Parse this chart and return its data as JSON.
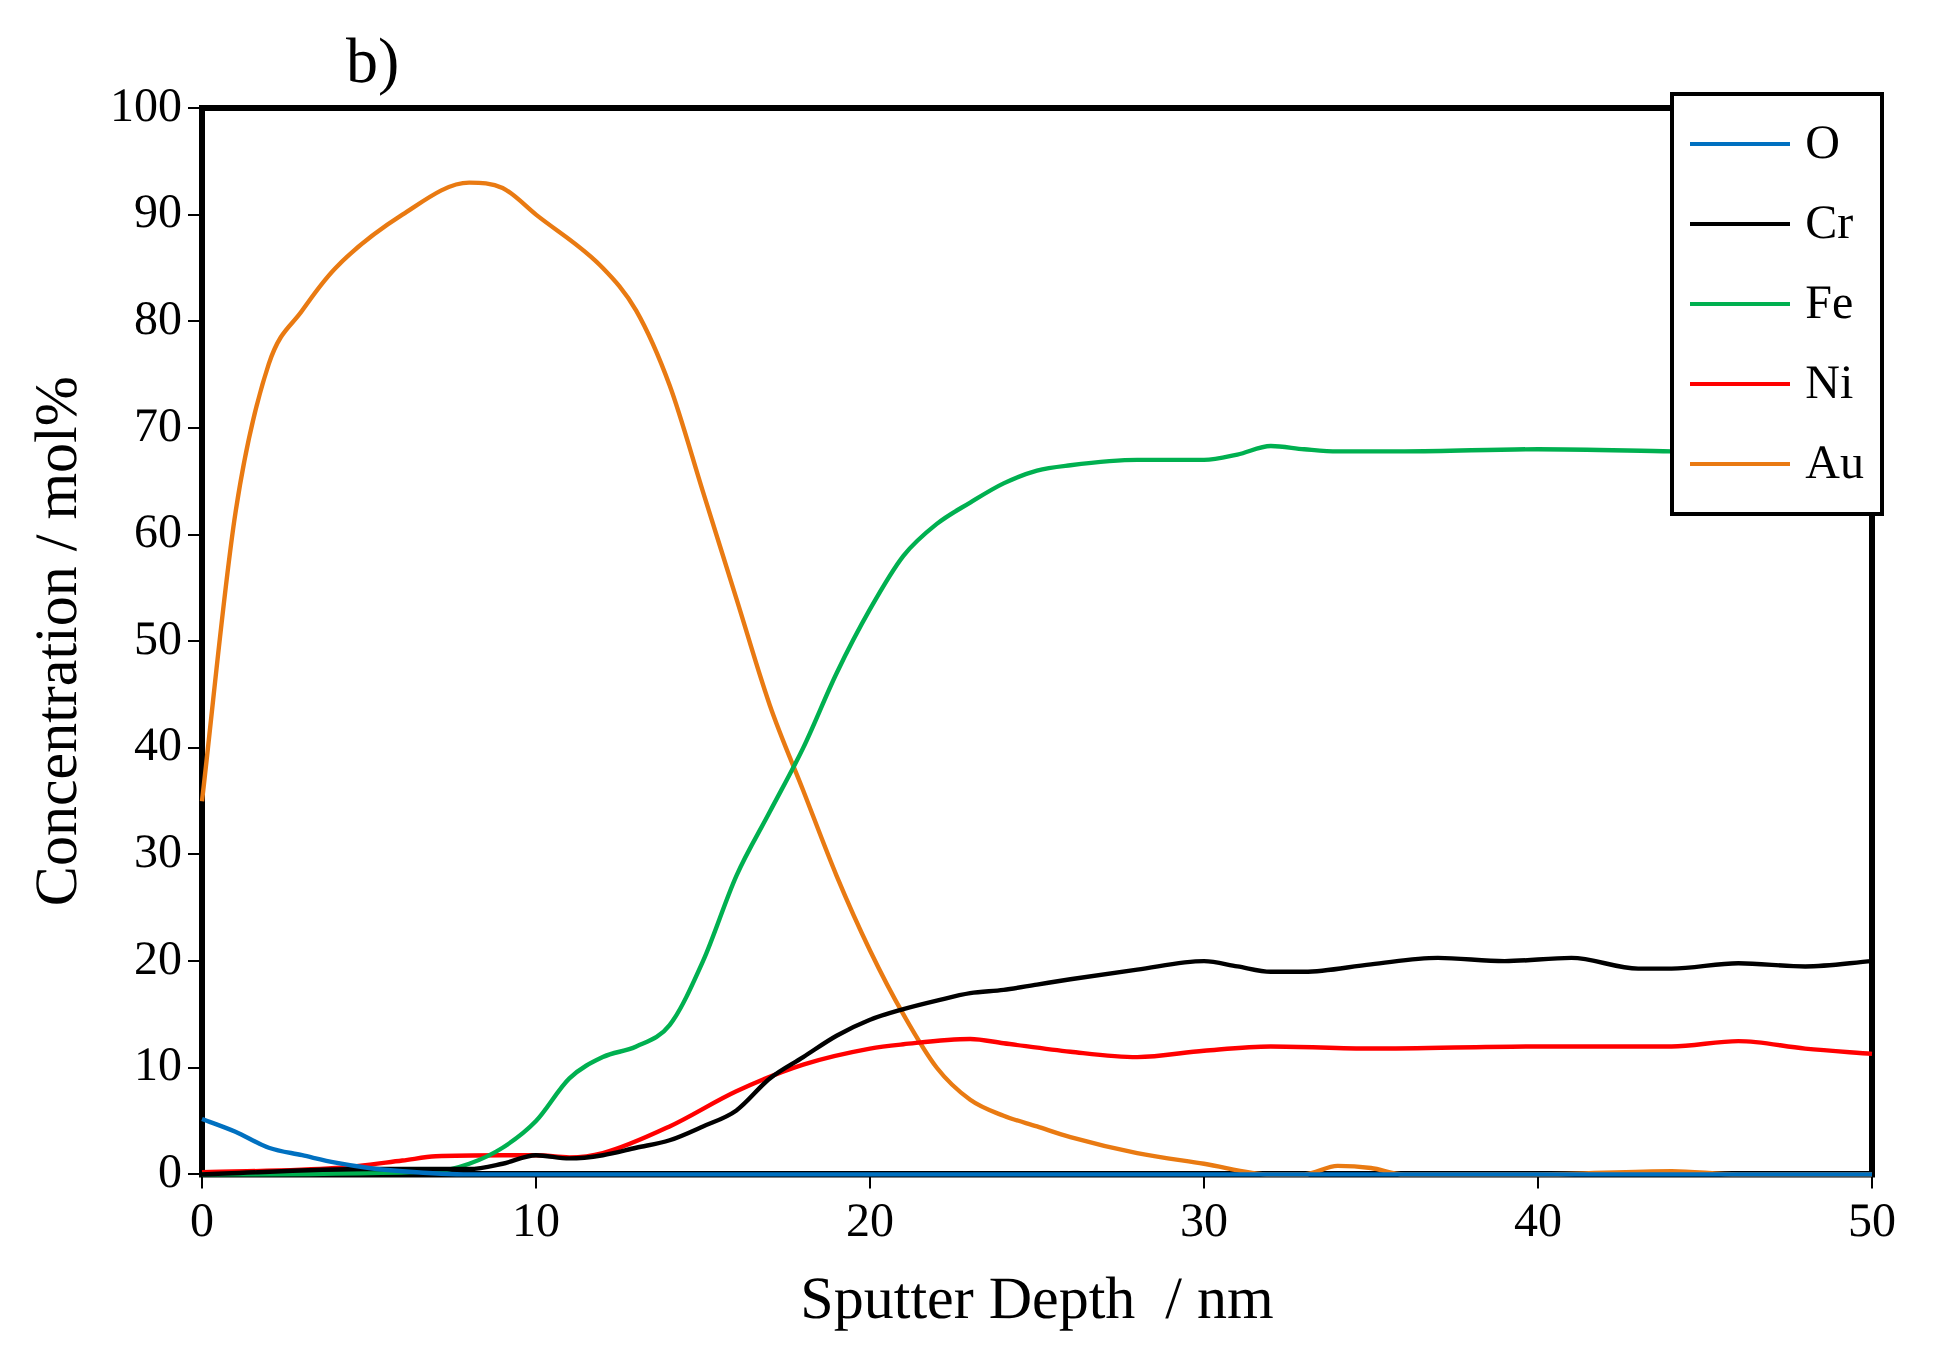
{
  "chart_data": {
    "type": "line",
    "title": "b)",
    "xlabel": "Sputter Depth  / nm",
    "ylabel": "Concentration / mol%",
    "xlim": [
      0,
      50
    ],
    "ylim": [
      0,
      100
    ],
    "xticks": [
      0,
      10,
      20,
      30,
      40,
      50
    ],
    "yticks": [
      0,
      10,
      20,
      30,
      40,
      50,
      60,
      70,
      80,
      90,
      100
    ],
    "grid": false,
    "legend": "top right",
    "marker": "none",
    "line_style": "solid",
    "series": [
      {
        "name": "O",
        "color": "#0070c0",
        "x": [
          0,
          1,
          2,
          3,
          4,
          5,
          6,
          8,
          50
        ],
        "values": [
          5.2,
          4,
          2.5,
          1.8,
          1.1,
          0.6,
          0.3,
          0,
          0
        ]
      },
      {
        "name": "Cr",
        "color": "#000000",
        "x": [
          0,
          5,
          8,
          9,
          10,
          11,
          12,
          13,
          14,
          15,
          16,
          17,
          18,
          19,
          20,
          21,
          22,
          23,
          24,
          25,
          26,
          28,
          30,
          31,
          32,
          33,
          35,
          37,
          39,
          41,
          43,
          44,
          46,
          48,
          50
        ],
        "values": [
          0,
          0.5,
          0.5,
          1,
          1.8,
          1.5,
          1.8,
          2.5,
          3.2,
          4.5,
          6,
          9,
          11,
          13,
          14.5,
          15.5,
          16.3,
          17,
          17.3,
          17.8,
          18.3,
          19.2,
          20,
          19.5,
          19,
          19,
          19.7,
          20.3,
          20,
          20.3,
          19.3,
          19.3,
          19.8,
          19.5,
          20
        ]
      },
      {
        "name": "Fe",
        "color": "#00b050",
        "x": [
          0,
          7,
          8,
          9,
          10,
          11,
          12,
          13,
          14,
          15,
          16,
          17,
          18,
          19,
          20,
          21,
          22,
          23,
          24,
          25,
          26,
          28,
          30,
          31,
          32,
          33,
          34,
          36,
          40,
          44
        ],
        "values": [
          0,
          0.3,
          1,
          2.5,
          5,
          9,
          11,
          12,
          14,
          20,
          28,
          34,
          40,
          47,
          53,
          58,
          61,
          63,
          64.8,
          66,
          66.5,
          67,
          67,
          67.5,
          68.3,
          68,
          67.8,
          67.8,
          68,
          67.8
        ]
      },
      {
        "name": "Ni",
        "color": "#ff0000",
        "x": [
          0,
          4,
          6,
          7,
          9,
          10,
          11,
          12,
          14,
          16,
          18,
          20,
          21,
          23,
          24,
          26,
          28,
          30,
          32,
          35,
          40,
          44,
          46,
          48,
          50
        ],
        "values": [
          0.2,
          0.6,
          1.3,
          1.7,
          1.8,
          1.8,
          1.6,
          2,
          4.5,
          7.8,
          10.3,
          11.8,
          12.2,
          12.7,
          12.3,
          11.5,
          11,
          11.6,
          12,
          11.8,
          12,
          12,
          12.5,
          11.8,
          11.3
        ]
      },
      {
        "name": "Au",
        "color": "#e97a12",
        "x": [
          0,
          1,
          2,
          3,
          4,
          6,
          8,
          9,
          10,
          12,
          13,
          14,
          15,
          16,
          17,
          18,
          19,
          20,
          21,
          22,
          23,
          24,
          25,
          26,
          28,
          30,
          32,
          33,
          34,
          35,
          36,
          40,
          44,
          46,
          50
        ],
        "values": [
          35,
          62,
          76,
          81,
          85,
          90,
          93,
          92.5,
          90,
          85,
          81,
          74,
          64,
          54,
          44,
          36,
          28,
          21,
          15,
          10,
          7,
          5.5,
          4.5,
          3.5,
          2,
          1,
          0,
          0,
          0.8,
          0.6,
          0,
          0,
          0.3,
          0,
          0
        ]
      }
    ]
  }
}
